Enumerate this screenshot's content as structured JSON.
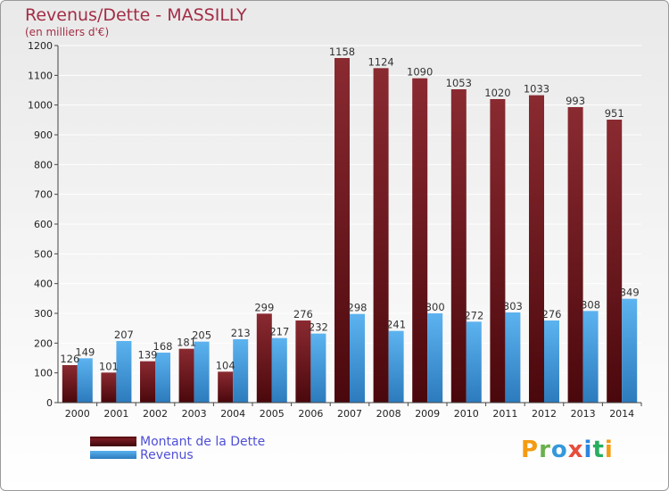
{
  "header": {
    "title": "Revenus/Dette - MASSILLY",
    "subtitle": "(en milliers d'€)"
  },
  "legend": {
    "dette_label": "Montant de la Dette",
    "revenus_label": "Revenus"
  },
  "logo": {
    "text": "Proxiti",
    "letters": [
      "P",
      "r",
      "o",
      "x",
      "i",
      "t",
      "i"
    ],
    "letter_colors": [
      "#f39c12",
      "#6ab04c",
      "#3498db",
      "#e74c3c",
      "#2e86de",
      "#27ae60",
      "#f39c12"
    ]
  },
  "colors": {
    "dette": "#6b1218",
    "revenus": "#3f97dc",
    "title": "#a32d45"
  },
  "chart_data": {
    "type": "bar",
    "title": "Revenus/Dette - MASSILLY",
    "subtitle": "(en milliers d'€)",
    "xlabel": "",
    "ylabel": "",
    "categories": [
      "2000",
      "2001",
      "2002",
      "2003",
      "2004",
      "2005",
      "2006",
      "2007",
      "2008",
      "2009",
      "2010",
      "2011",
      "2012",
      "2013",
      "2014"
    ],
    "series": [
      {
        "name": "Montant de la Dette",
        "values": [
          126,
          101,
          139,
          181,
          104,
          299,
          276,
          1158,
          1124,
          1090,
          1053,
          1020,
          1033,
          993,
          951
        ]
      },
      {
        "name": "Revenus",
        "values": [
          149,
          207,
          168,
          205,
          213,
          217,
          232,
          298,
          241,
          300,
          272,
          303,
          276,
          308,
          349
        ]
      }
    ],
    "ylim": [
      0,
      1200
    ],
    "yticks": [
      0,
      100,
      200,
      300,
      400,
      500,
      600,
      700,
      800,
      900,
      1000,
      1100,
      1200
    ],
    "grid": true,
    "legend_position": "bottom-left"
  }
}
